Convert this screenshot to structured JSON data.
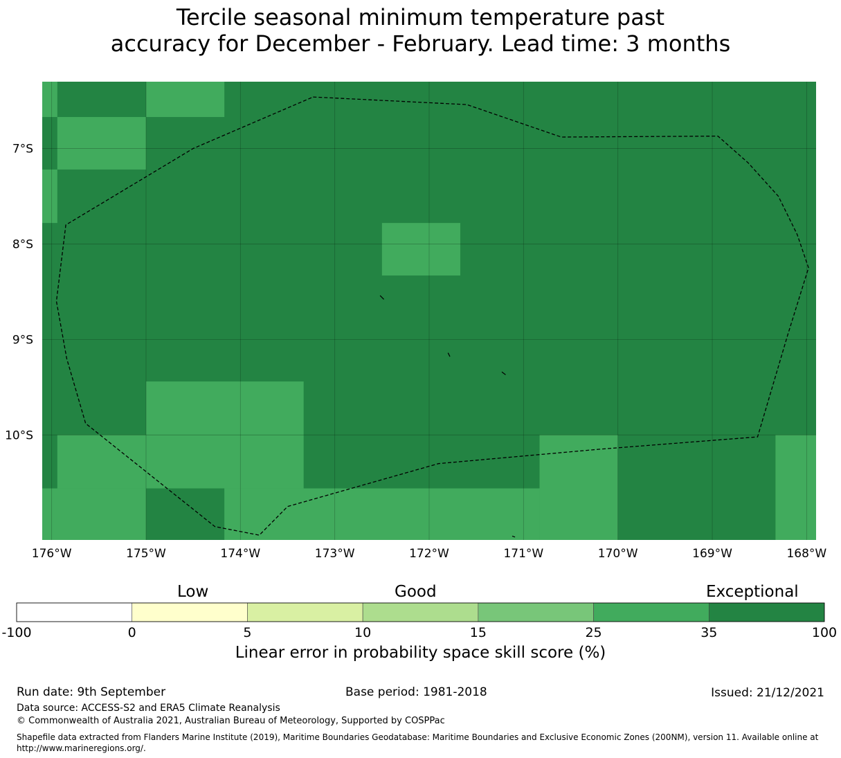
{
  "title": {
    "line1": "Tercile seasonal minimum temperature past",
    "line2": "accuracy for December - February. Lead time: 3 months"
  },
  "map": {
    "lon_range": [
      -176.1,
      -167.9
    ],
    "lat_range": [
      -11.1,
      -6.3
    ],
    "lon_ticks": [
      {
        "value": -176,
        "label": "176°W"
      },
      {
        "value": -175,
        "label": "175°W"
      },
      {
        "value": -174,
        "label": "174°W"
      },
      {
        "value": -173,
        "label": "173°W"
      },
      {
        "value": -172,
        "label": "172°W"
      },
      {
        "value": -171,
        "label": "171°W"
      },
      {
        "value": -170,
        "label": "170°W"
      },
      {
        "value": -169,
        "label": "169°W"
      },
      {
        "value": -168,
        "label": "168°W"
      }
    ],
    "lat_ticks": [
      {
        "value": -7,
        "label": "7°S"
      },
      {
        "value": -8,
        "label": "8°S"
      },
      {
        "value": -9,
        "label": "9°S"
      },
      {
        "value": -10,
        "label": "10°S"
      }
    ],
    "background_class": "35-100",
    "cells_25_35": [
      {
        "lon": [
          -176.1,
          -175.94
        ],
        "lat": [
          -6.3,
          -6.67
        ]
      },
      {
        "lon": [
          -175.0,
          -174.17
        ],
        "lat": [
          -6.3,
          -6.67
        ]
      },
      {
        "lon": [
          -175.94,
          -175.0
        ],
        "lat": [
          -6.67,
          -7.22
        ]
      },
      {
        "lon": [
          -176.1,
          -175.94
        ],
        "lat": [
          -7.22,
          -7.78
        ]
      },
      {
        "lon": [
          -172.5,
          -171.67
        ],
        "lat": [
          -7.78,
          -8.33
        ]
      },
      {
        "lon": [
          -175.0,
          -173.33
        ],
        "lat": [
          -9.44,
          -10.0
        ]
      },
      {
        "lon": [
          -175.94,
          -173.33
        ],
        "lat": [
          -10.0,
          -10.56
        ]
      },
      {
        "lon": [
          -176.1,
          -175.0
        ],
        "lat": [
          -10.56,
          -11.1
        ]
      },
      {
        "lon": [
          -174.17,
          -170.83
        ],
        "lat": [
          -10.56,
          -11.1
        ]
      },
      {
        "lon": [
          -170.83,
          -170.0
        ],
        "lat": [
          -10.0,
          -11.1
        ]
      },
      {
        "lon": [
          -168.33,
          -167.9
        ],
        "lat": [
          -10.0,
          -11.1
        ]
      }
    ],
    "eez_boundary": [
      [
        -173.23,
        -6.46
      ],
      [
        -171.6,
        -6.54
      ],
      [
        -170.6,
        -6.88
      ],
      [
        -168.94,
        -6.87
      ],
      [
        -168.62,
        -7.15
      ],
      [
        -168.3,
        -7.5
      ],
      [
        -168.1,
        -7.9
      ],
      [
        -167.98,
        -8.25
      ],
      [
        -168.2,
        -8.95
      ],
      [
        -168.52,
        -10.02
      ],
      [
        -170.2,
        -10.15
      ],
      [
        -171.9,
        -10.3
      ],
      [
        -173.5,
        -10.75
      ],
      [
        -173.8,
        -11.05
      ],
      [
        -174.27,
        -10.96
      ],
      [
        -175.64,
        -9.88
      ],
      [
        -175.84,
        -9.2
      ],
      [
        -175.95,
        -8.6
      ],
      [
        -175.85,
        -7.8
      ],
      [
        -174.5,
        -7.0
      ],
      [
        -173.23,
        -6.46
      ]
    ],
    "islands": [
      [
        [
          -172.52,
          -8.54
        ],
        [
          -172.48,
          -8.58
        ]
      ],
      [
        [
          -171.8,
          -9.14
        ],
        [
          -171.78,
          -9.18
        ]
      ],
      [
        [
          -171.23,
          -9.34
        ],
        [
          -171.19,
          -9.37
        ]
      ],
      [
        [
          -171.12,
          -11.06
        ],
        [
          -171.09,
          -11.07
        ]
      ]
    ]
  },
  "colorbar": {
    "ticks": [
      "-100",
      "0",
      "5",
      "10",
      "15",
      "25",
      "35",
      "100"
    ],
    "bins": [
      {
        "range": "-100 to 0",
        "color": "#ffffff"
      },
      {
        "range": "0 to 5",
        "color": "#ffffcc"
      },
      {
        "range": "5 to 10",
        "color": "#d9f0a3"
      },
      {
        "range": "10 to 15",
        "color": "#addd8e"
      },
      {
        "range": "15 to 25",
        "color": "#78c679"
      },
      {
        "range": "25 to 35",
        "color": "#41ab5d"
      },
      {
        "range": "35 to 100",
        "color": "#238443"
      }
    ],
    "categories": {
      "low": "Low",
      "good": "Good",
      "exceptional": "Exceptional"
    },
    "label": "Linear error in probability space skill score (%)"
  },
  "footer": {
    "run_date": "Run date: 9th September",
    "base_period": "Base period: 1981-2018",
    "issued": "Issued: 21/12/2021",
    "data_source": "Data source: ACCESS-S2 and ERA5 Climate Reanalysis",
    "copyright": "© Commonwealth of Australia 2021, Australian Bureau of Meteorology, Supported by COSPPac",
    "shapefile_line1": "Shapefile data extracted from Flanders Marine Institute (2019), Maritime Boundaries Geodatabase: Maritime Boundaries and Exclusive Economic Zones (200NM), version 11. Available online at",
    "shapefile_line2": "http://www.marineregions.org/."
  }
}
